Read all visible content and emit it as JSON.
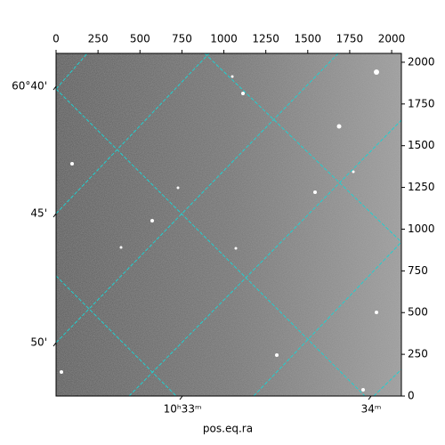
{
  "chart_data": {
    "type": "image",
    "xlabel": "pos.eq.ra",
    "xlim": [
      0,
      2058
    ],
    "ylim": [
      0,
      2053
    ],
    "xticks": [
      0,
      250,
      500,
      750,
      1000,
      1250,
      1500,
      1750,
      2000
    ],
    "yticks": [
      0,
      250,
      500,
      750,
      1000,
      1250,
      1500,
      1750,
      2000
    ],
    "ra_ticks": [
      "10ʰ33ᵐ",
      "34ᵐ"
    ],
    "dec_ticks": [
      "60°40'",
      "45'",
      "50'"
    ],
    "grid": true,
    "grid_color": "#20d0d0"
  }
}
